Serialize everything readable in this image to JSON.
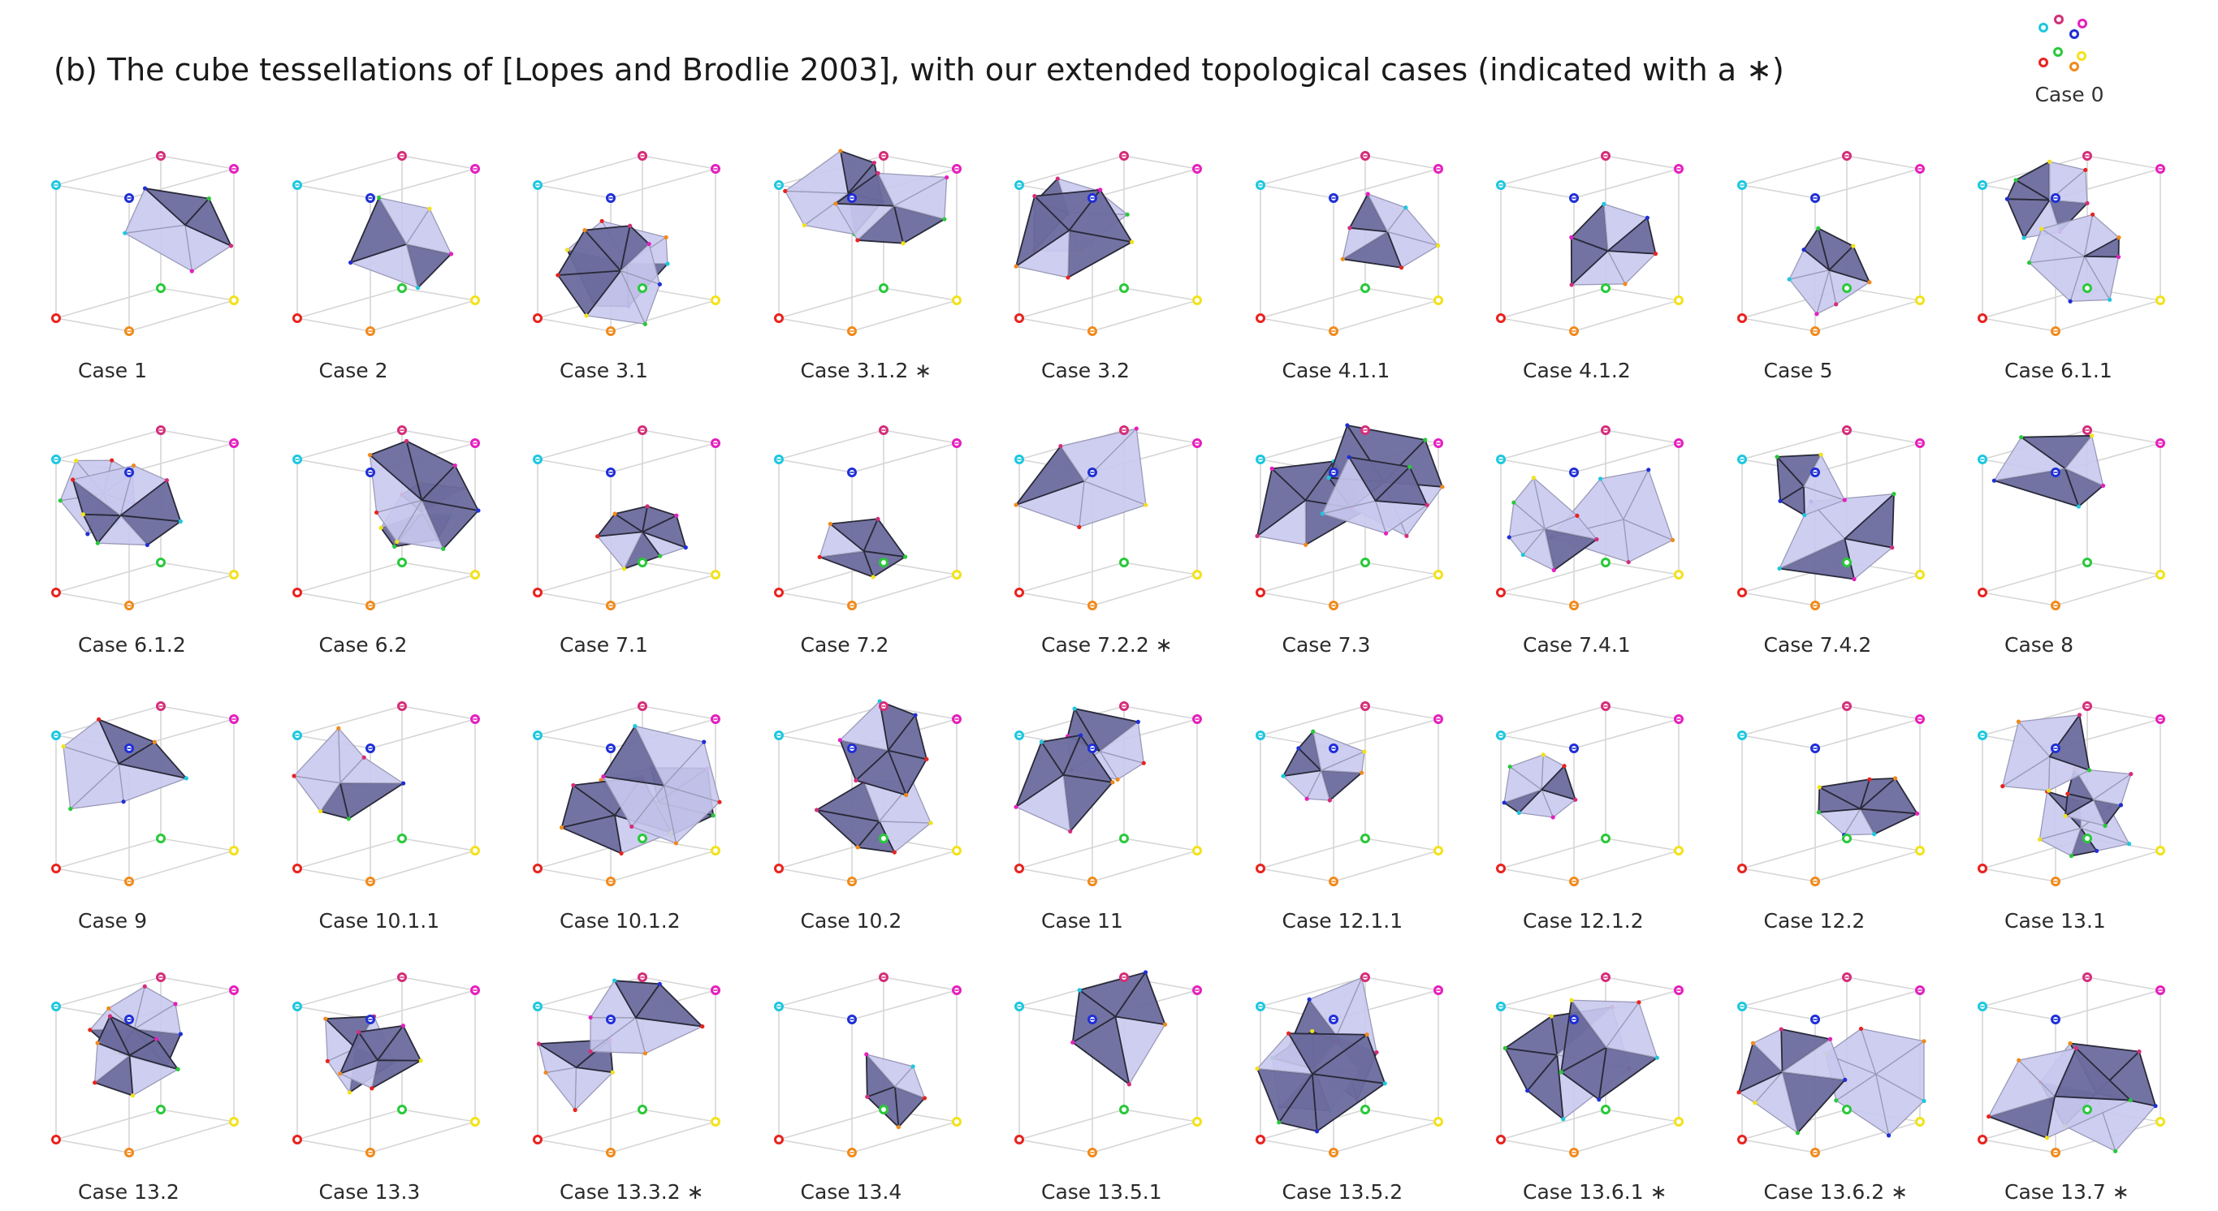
{
  "title": "(b) The cube tessellations of [Lopes and Brodlie 2003], with our extended topological cases (indicated with a ∗)",
  "legend": {
    "label": "Case 0"
  },
  "colors": {
    "corner_red": "#e8231f",
    "corner_orange": "#f08a1c",
    "corner_yellow": "#f2e21a",
    "corner_green": "#29c93a",
    "corner_cyan": "#1ec7df",
    "corner_magenta": "#e51fbe",
    "corner_pink": "#d42e7a",
    "corner_blue": "#1f2fd6",
    "surface_light": "#c9c9ef",
    "surface_dark": "#6b6b9e",
    "edge_dark": "#2a2a3a",
    "cube_lines": "#d6d6d6"
  },
  "cases": [
    {
      "label": "Case 1"
    },
    {
      "label": "Case 2"
    },
    {
      "label": "Case 3.1"
    },
    {
      "label": "Case 3.1.2 ∗"
    },
    {
      "label": "Case 3.2"
    },
    {
      "label": "Case 4.1.1"
    },
    {
      "label": "Case 4.1.2"
    },
    {
      "label": "Case 5"
    },
    {
      "label": "Case 6.1.1"
    },
    {
      "label": "Case 6.1.2"
    },
    {
      "label": "Case 6.2"
    },
    {
      "label": "Case 7.1"
    },
    {
      "label": "Case 7.2"
    },
    {
      "label": "Case 7.2.2 ∗"
    },
    {
      "label": "Case 7.3"
    },
    {
      "label": "Case 7.4.1"
    },
    {
      "label": "Case 7.4.2"
    },
    {
      "label": "Case 8"
    },
    {
      "label": "Case 9"
    },
    {
      "label": "Case 10.1.1"
    },
    {
      "label": "Case 10.1.2"
    },
    {
      "label": "Case 10.2"
    },
    {
      "label": "Case 11"
    },
    {
      "label": "Case 12.1.1"
    },
    {
      "label": "Case 12.1.2"
    },
    {
      "label": "Case 12.2"
    },
    {
      "label": "Case 13.1"
    },
    {
      "label": "Case 13.2"
    },
    {
      "label": "Case 13.3"
    },
    {
      "label": "Case 13.3.2 ∗"
    },
    {
      "label": "Case 13.4"
    },
    {
      "label": "Case 13.5.1"
    },
    {
      "label": "Case 13.5.2"
    },
    {
      "label": "Case 13.6.1 ∗"
    },
    {
      "label": "Case 13.6.2 ∗"
    },
    {
      "label": "Case 13.7 ∗"
    }
  ]
}
